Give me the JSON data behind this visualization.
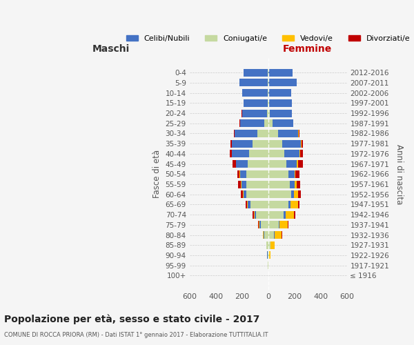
{
  "age_groups": [
    "100+",
    "95-99",
    "90-94",
    "85-89",
    "80-84",
    "75-79",
    "70-74",
    "65-69",
    "60-64",
    "55-59",
    "50-54",
    "45-49",
    "40-44",
    "35-39",
    "30-34",
    "25-29",
    "20-24",
    "15-19",
    "10-14",
    "5-9",
    "0-4"
  ],
  "birth_years": [
    "≤ 1916",
    "1917-1921",
    "1922-1926",
    "1927-1931",
    "1932-1936",
    "1937-1941",
    "1942-1946",
    "1947-1951",
    "1952-1956",
    "1957-1961",
    "1962-1966",
    "1967-1971",
    "1972-1976",
    "1977-1981",
    "1982-1986",
    "1987-1991",
    "1992-1996",
    "1997-2001",
    "2002-2006",
    "2007-2011",
    "2012-2016"
  ],
  "maschi": {
    "celibi": [
      0,
      0,
      1,
      2,
      5,
      10,
      15,
      20,
      25,
      40,
      50,
      90,
      130,
      155,
      175,
      185,
      190,
      185,
      195,
      215,
      185
    ],
    "coniugati": [
      0,
      1,
      5,
      12,
      30,
      55,
      90,
      135,
      165,
      165,
      165,
      155,
      145,
      120,
      80,
      30,
      10,
      5,
      2,
      2,
      1
    ],
    "vedovi": [
      0,
      0,
      1,
      2,
      5,
      5,
      5,
      5,
      5,
      3,
      2,
      2,
      1,
      1,
      1,
      1,
      0,
      0,
      0,
      0,
      0
    ],
    "divorziati": [
      0,
      0,
      0,
      0,
      0,
      5,
      10,
      10,
      15,
      20,
      20,
      25,
      15,
      10,
      5,
      3,
      1,
      0,
      0,
      0,
      0
    ]
  },
  "femmine": {
    "nubili": [
      0,
      0,
      1,
      2,
      5,
      8,
      12,
      18,
      22,
      35,
      45,
      80,
      115,
      140,
      155,
      155,
      165,
      175,
      175,
      215,
      185
    ],
    "coniugate": [
      0,
      2,
      8,
      18,
      45,
      80,
      120,
      155,
      175,
      165,
      155,
      140,
      125,
      110,
      75,
      35,
      15,
      5,
      2,
      2,
      1
    ],
    "vedove": [
      0,
      2,
      8,
      30,
      50,
      60,
      65,
      55,
      30,
      20,
      10,
      8,
      5,
      3,
      2,
      1,
      0,
      0,
      0,
      0,
      0
    ],
    "divorziate": [
      0,
      0,
      0,
      0,
      5,
      5,
      8,
      10,
      20,
      25,
      30,
      35,
      20,
      15,
      5,
      3,
      1,
      0,
      0,
      0,
      0
    ]
  },
  "colors": {
    "celibi": "#4472c4",
    "coniugati": "#c5d9a0",
    "vedovi": "#ffc000",
    "divorziati": "#c00000"
  },
  "xlim": 600,
  "title": "Popolazione per età, sesso e stato civile - 2017",
  "subtitle": "COMUNE DI ROCCA PRIORA (RM) - Dati ISTAT 1° gennaio 2017 - Elaborazione TUTTITALIA.IT",
  "ylabel_left": "Fasce di età",
  "ylabel_right": "Anni di nascita",
  "xlabel_left": "Maschi",
  "xlabel_right": "Femmine",
  "bg_color": "#f5f5f5",
  "grid_color": "#cccccc"
}
